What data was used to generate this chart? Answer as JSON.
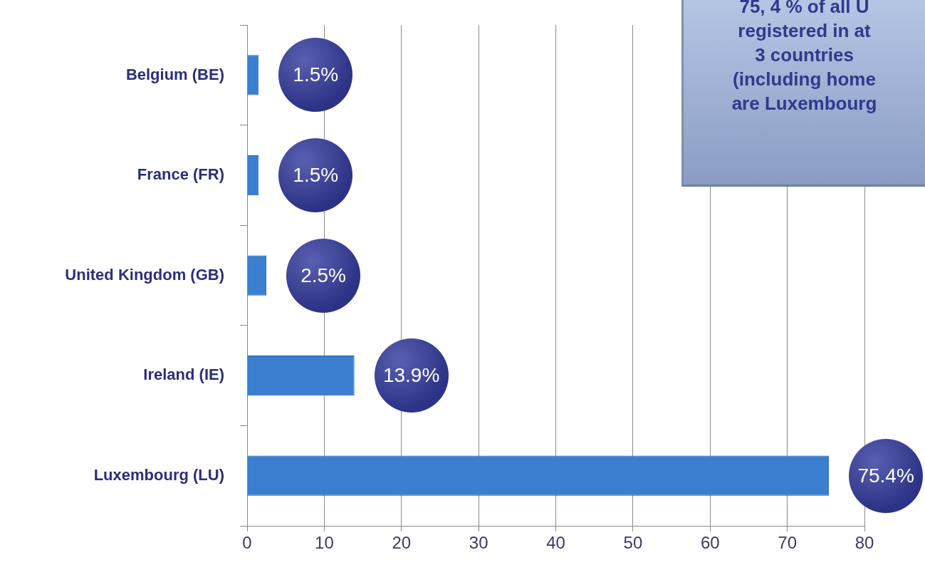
{
  "chart_data": {
    "type": "bar",
    "orientation": "horizontal",
    "categories": [
      "Belgium (BE)",
      "France (FR)",
      "United Kingdom (GB)",
      "Ireland (IE)",
      "Luxembourg (LU)"
    ],
    "values": [
      1.5,
      1.5,
      2.5,
      13.9,
      75.4
    ],
    "value_labels": [
      "1.5%",
      "1.5%",
      "2.5%",
      "13.9%",
      "75.4%"
    ],
    "color": "#3b7fd0",
    "xlim": [
      0,
      80
    ],
    "xticks": [
      0,
      10,
      20,
      30,
      40,
      50,
      60,
      70,
      80
    ],
    "grid": "x",
    "legend": false,
    "annotations": [
      "75, 4 % of all U\nregistered in at\n3 countries\n(including home\nare Luxembourg"
    ]
  }
}
